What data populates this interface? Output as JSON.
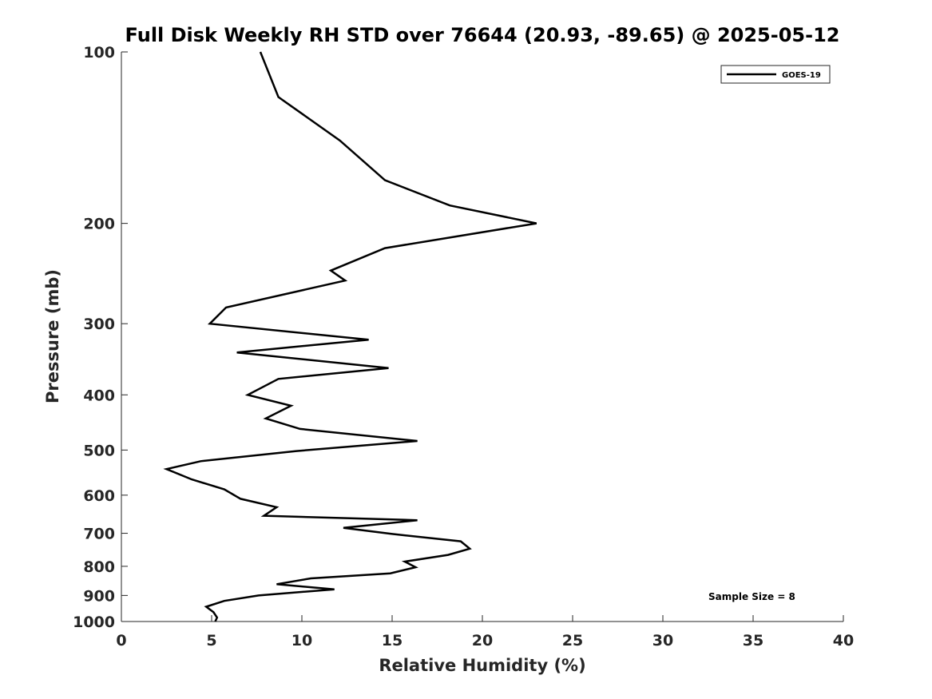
{
  "chart_data": {
    "type": "line",
    "title": "Full Disk Weekly RH STD over 76644 (20.93, -89.65) @ 2025-05-12",
    "xlabel": "Relative Humidity (%)",
    "ylabel": "Pressure (mb)",
    "xlim": [
      0,
      40
    ],
    "ylim": [
      100,
      1000
    ],
    "yscale": "log",
    "y_reversed": true,
    "grid": false,
    "x_ticks": [
      0,
      5,
      10,
      15,
      20,
      25,
      30,
      35,
      40
    ],
    "x_tick_labels": [
      "0",
      "5",
      "10",
      "15",
      "20",
      "25",
      "30",
      "35",
      "40"
    ],
    "y_ticks": [
      100,
      200,
      300,
      400,
      500,
      600,
      700,
      800,
      900,
      1000
    ],
    "y_tick_labels": [
      "100",
      "200",
      "300",
      "400",
      "500",
      "600",
      "700",
      "800",
      "900",
      "1000"
    ],
    "legend": {
      "position": "top-right",
      "entries": [
        "GOES-19"
      ]
    },
    "annotation": "Sample Size = 8",
    "series": [
      {
        "name": "GOES-19",
        "color": "#000000",
        "points": [
          [
            7.7,
            100
          ],
          [
            8.7,
            120
          ],
          [
            12.1,
            143
          ],
          [
            14.6,
            168
          ],
          [
            18.2,
            186
          ],
          [
            23.0,
            200
          ],
          [
            14.6,
            221
          ],
          [
            11.6,
            242
          ],
          [
            12.4,
            252
          ],
          [
            5.8,
            281
          ],
          [
            4.9,
            300
          ],
          [
            13.7,
            320
          ],
          [
            6.4,
            337
          ],
          [
            14.8,
            359
          ],
          [
            8.7,
            375
          ],
          [
            7.0,
            400
          ],
          [
            9.4,
            418
          ],
          [
            8.0,
            440
          ],
          [
            9.9,
            459
          ],
          [
            16.4,
            482
          ],
          [
            9.7,
            502
          ],
          [
            4.4,
            523
          ],
          [
            2.5,
            540
          ],
          [
            3.9,
            563
          ],
          [
            5.7,
            586
          ],
          [
            6.6,
            609
          ],
          [
            8.6,
            630
          ],
          [
            7.9,
            652
          ],
          [
            16.4,
            664
          ],
          [
            12.3,
            685
          ],
          [
            15.0,
            702
          ],
          [
            18.8,
            723
          ],
          [
            19.3,
            745
          ],
          [
            18.1,
            764
          ],
          [
            15.7,
            785
          ],
          [
            16.3,
            803
          ],
          [
            14.9,
            823
          ],
          [
            10.5,
            840
          ],
          [
            8.6,
            860
          ],
          [
            11.8,
            878
          ],
          [
            7.6,
            900
          ],
          [
            5.7,
            920
          ],
          [
            4.7,
            942
          ],
          [
            5.1,
            963
          ],
          [
            5.3,
            984
          ],
          [
            5.2,
            1000
          ]
        ]
      }
    ]
  }
}
